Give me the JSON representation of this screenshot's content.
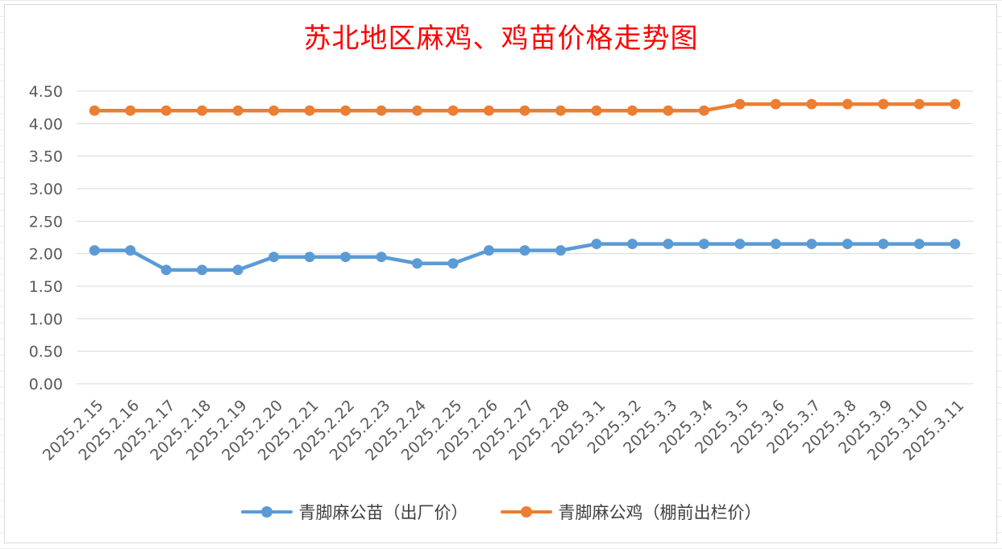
{
  "chart_data": {
    "type": "line",
    "title": "苏北地区麻鸡、鸡苗价格走势图",
    "xlabel": "",
    "ylabel": "",
    "ylim": [
      0,
      4.5
    ],
    "yticks": [
      "0.00",
      "0.50",
      "1.00",
      "1.50",
      "2.00",
      "2.50",
      "3.00",
      "3.50",
      "4.00",
      "4.50"
    ],
    "grid": true,
    "legend_position": "bottom",
    "categories": [
      "2025.2.15",
      "2025.2.16",
      "2025.2.17",
      "2025.2.18",
      "2025.2.19",
      "2025.2.20",
      "2025.2.21",
      "2025.2.22",
      "2025.2.23",
      "2025.2.24",
      "2025.2.25",
      "2025.2.26",
      "2025.2.27",
      "2025.2.28",
      "2025.3.1",
      "2025.3.2",
      "2025.3.3",
      "2025.3.4",
      "2025.3.5",
      "2025.3.6",
      "2025.3.7",
      "2025.3.8",
      "2025.3.9",
      "2025.3.10",
      "2025.3.11"
    ],
    "series": [
      {
        "name": "青脚麻公苗（出厂价）",
        "color": "#5b9bd5",
        "values": [
          2.05,
          2.05,
          1.75,
          1.75,
          1.75,
          1.95,
          1.95,
          1.95,
          1.95,
          1.85,
          1.85,
          2.05,
          2.05,
          2.05,
          2.15,
          2.15,
          2.15,
          2.15,
          2.15,
          2.15,
          2.15,
          2.15,
          2.15,
          2.15,
          2.15
        ]
      },
      {
        "name": "青脚麻公鸡（棚前出栏价）",
        "color": "#ed7d31",
        "values": [
          4.2,
          4.2,
          4.2,
          4.2,
          4.2,
          4.2,
          4.2,
          4.2,
          4.2,
          4.2,
          4.2,
          4.2,
          4.2,
          4.2,
          4.2,
          4.2,
          4.2,
          4.2,
          4.3,
          4.3,
          4.3,
          4.3,
          4.3,
          4.3,
          4.3
        ]
      }
    ]
  },
  "colors": {
    "title": "#ff0000",
    "gridline": "#d9d9d9",
    "axis_text": "#595959"
  }
}
